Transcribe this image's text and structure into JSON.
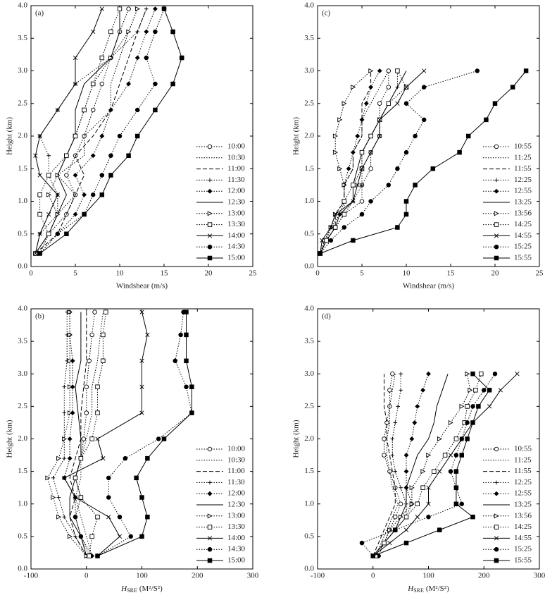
{
  "chart_data": [
    {
      "type": "line",
      "label": "(a)",
      "y_label": "Height (km)",
      "x_label": "Windshear (m/s)",
      "legend": "lower right",
      "xlim": [
        0,
        25
      ],
      "xticks": [
        0,
        5,
        10,
        15,
        20,
        25
      ],
      "ylim": [
        0,
        4
      ],
      "yticks": [
        {
          "value": 0,
          "label": "0.0"
        },
        0.5,
        {
          "value": 1,
          "label": "1.0"
        },
        1.5,
        {
          "value": 2,
          "label": "2.0"
        },
        2.5,
        {
          "value": 3,
          "label": "3.0"
        },
        3.5,
        {
          "value": 4,
          "label": "4.0"
        }
      ],
      "y": [
        0.2,
        0.5,
        0.8,
        1.1,
        1.4,
        1.7,
        2.0,
        2.4,
        2.8,
        3.2,
        3.6,
        3.95
      ],
      "series": [
        {
          "name": "10:00",
          "marker": "circle-open",
          "dash": "dotted",
          "x": [
            0.5,
            2,
            4,
            5,
            4,
            5,
            6,
            7,
            8,
            9,
            10,
            11
          ]
        },
        {
          "name": "10:30",
          "marker": "none",
          "dash": "dotted",
          "x": [
            0.5,
            2,
            3,
            5,
            3,
            6,
            6,
            9,
            9,
            10,
            11,
            12
          ]
        },
        {
          "name": "11:00",
          "marker": "none",
          "dash": "dashed",
          "x": [
            0.5,
            3,
            4,
            5,
            6,
            5,
            7,
            9,
            10,
            11,
            12,
            13
          ]
        },
        {
          "name": "11:30",
          "marker": "plus",
          "dash": "dotted",
          "x": [
            0.5,
            1,
            3,
            3,
            2,
            2,
            1,
            3,
            5,
            9,
            12,
            13
          ]
        },
        {
          "name": "12:00",
          "marker": "diamond",
          "dash": "dotted",
          "x": [
            1,
            3,
            5,
            6,
            5,
            7,
            8,
            9,
            11,
            12,
            13,
            14
          ]
        },
        {
          "name": "12:30",
          "marker": "none",
          "dash": "solid",
          "x": [
            0.5,
            2,
            3,
            4,
            3,
            4,
            5,
            5,
            6,
            9,
            10,
            10
          ]
        },
        {
          "name": "13:00",
          "marker": "triangle-open",
          "dash": "dotted",
          "x": [
            1,
            2,
            3,
            2,
            3,
            4,
            5,
            6,
            7,
            9,
            11,
            12
          ]
        },
        {
          "name": "13:30",
          "marker": "square-open",
          "dash": "dotted",
          "x": [
            0.5,
            2,
            1,
            1,
            2,
            4,
            5,
            6,
            7,
            8,
            9,
            10
          ]
        },
        {
          "name": "14:00",
          "marker": "cross",
          "dash": "solid",
          "x": [
            0.5,
            1,
            2,
            3,
            1,
            0.5,
            1,
            3,
            5,
            5,
            7,
            8
          ]
        },
        {
          "name": "14:30",
          "marker": "circle",
          "dash": "dotted",
          "x": [
            1,
            3,
            6,
            7,
            8,
            9,
            10,
            12,
            14,
            13,
            14,
            15
          ]
        },
        {
          "name": "15:00",
          "marker": "square",
          "dash": "solid",
          "x": [
            1,
            4,
            6,
            8,
            9,
            11,
            12,
            14,
            16,
            17,
            16,
            15
          ]
        }
      ]
    },
    {
      "type": "line",
      "label": "(b)",
      "y_label": "Height (km)",
      "x_label": {
        "main": "H",
        "sub": "SRE",
        "unit": "(M²/S²)"
      },
      "legend": "lower right",
      "xlim": [
        -100,
        300
      ],
      "xticks": [
        -100,
        0,
        100,
        200,
        300
      ],
      "ylim": [
        0,
        4
      ],
      "yticks": [
        {
          "value": 0,
          "label": "0.0"
        },
        0.5,
        {
          "value": 1,
          "label": "1.0"
        },
        1.5,
        {
          "value": 2,
          "label": "2.0"
        },
        2.5,
        {
          "value": 3,
          "label": "3.0"
        },
        3.5,
        {
          "value": 4,
          "label": "4.0"
        }
      ],
      "y": [
        0.2,
        0.5,
        0.8,
        1.1,
        1.4,
        1.7,
        2.0,
        2.4,
        2.8,
        3.2,
        3.6,
        3.95
      ],
      "series": [
        {
          "name": "10:00",
          "marker": "circle-open",
          "dash": "dotted",
          "x": [
            5,
            -10,
            -20,
            -10,
            -20,
            -10,
            -5,
            0,
            0,
            5,
            10,
            15
          ]
        },
        {
          "name": "10:30",
          "marker": "none",
          "dash": "dotted",
          "x": [
            10,
            0,
            -10,
            -20,
            -10,
            -10,
            0,
            10,
            10,
            20,
            25,
            30
          ]
        },
        {
          "name": "11:00",
          "marker": "none",
          "dash": "dashed",
          "x": [
            0,
            -20,
            -30,
            -20,
            -30,
            -20,
            -10,
            -10,
            -5,
            0,
            0,
            0
          ]
        },
        {
          "name": "11:30",
          "marker": "plus",
          "dash": "dotted",
          "x": [
            0,
            -20,
            -40,
            -50,
            -60,
            -40,
            -40,
            -40,
            -40,
            -35,
            -35,
            -35
          ]
        },
        {
          "name": "12:00",
          "marker": "diamond",
          "dash": "dotted",
          "x": [
            10,
            -10,
            -20,
            -20,
            -40,
            -30,
            -30,
            -25,
            -25,
            -25,
            -30,
            -30
          ]
        },
        {
          "name": "12:30",
          "marker": "none",
          "dash": "solid",
          "x": [
            0,
            -10,
            -30,
            -30,
            -20,
            -10,
            -10,
            -15,
            -20,
            -10,
            -10,
            -10
          ]
        },
        {
          "name": "13:00",
          "marker": "triangle-open",
          "dash": "dotted",
          "x": [
            0,
            -30,
            -50,
            -60,
            -70,
            -50,
            -40,
            -30,
            -30,
            -30,
            -30,
            -30
          ]
        },
        {
          "name": "13:30",
          "marker": "square-open",
          "dash": "dotted",
          "x": [
            5,
            10,
            20,
            -10,
            -20,
            -10,
            10,
            20,
            20,
            30,
            30,
            35
          ]
        },
        {
          "name": "14:00",
          "marker": "cross",
          "dash": "solid",
          "x": [
            20,
            60,
            40,
            -20,
            -40,
            30,
            20,
            100,
            100,
            100,
            110,
            100
          ]
        },
        {
          "name": "14:30",
          "marker": "circle",
          "dash": "dotted",
          "x": [
            20,
            80,
            60,
            40,
            40,
            70,
            130,
            190,
            180,
            160,
            170,
            175
          ]
        },
        {
          "name": "15:00",
          "marker": "square",
          "dash": "solid",
          "x": [
            20,
            100,
            110,
            100,
            90,
            110,
            140,
            190,
            190,
            180,
            180,
            180
          ]
        }
      ]
    },
    {
      "type": "line",
      "label": "(c)",
      "y_label": "Height (km)",
      "x_label": "Windshear (m/s)",
      "legend": "lower right",
      "xlim": [
        0,
        25
      ],
      "xticks": [
        0,
        5,
        10,
        15,
        20,
        25
      ],
      "ylim": [
        0,
        4
      ],
      "yticks": [
        {
          "value": 0,
          "label": "0.0"
        },
        0.5,
        {
          "value": 1,
          "label": "1.0"
        },
        1.5,
        {
          "value": 2,
          "label": "2.0"
        },
        2.5,
        {
          "value": 3,
          "label": "3.0"
        },
        3.5,
        {
          "value": 4,
          "label": "4.0"
        }
      ],
      "y": [
        0.2,
        0.4,
        0.6,
        0.8,
        1.0,
        1.25,
        1.5,
        1.75,
        2.0,
        2.25,
        2.5,
        2.75,
        3.0
      ],
      "series": [
        {
          "name": "10:55",
          "marker": "circle-open",
          "dash": "dotted",
          "x": [
            0.3,
            1,
            2,
            3,
            5,
            5,
            6,
            6,
            7,
            7,
            7,
            8,
            8
          ]
        },
        {
          "name": "11:25",
          "marker": "none",
          "dash": "dotted",
          "x": [
            0.3,
            1,
            1.5,
            2,
            3,
            3,
            4,
            4,
            5,
            5,
            6,
            7,
            8
          ]
        },
        {
          "name": "11:55",
          "marker": "none",
          "dash": "dashed",
          "x": [
            0.3,
            1,
            2,
            2,
            3,
            3,
            4,
            4,
            5,
            5,
            5,
            6,
            6
          ]
        },
        {
          "name": "12:25",
          "marker": "plus",
          "dash": "dotted",
          "x": [
            0.3,
            1,
            2,
            3,
            4,
            5,
            5,
            5,
            6,
            7,
            8,
            9,
            9
          ]
        },
        {
          "name": "12:55",
          "marker": "diamond",
          "dash": "dotted",
          "x": [
            0.3,
            0.8,
            1.5,
            2.5,
            3,
            3,
            3.5,
            4,
            4.5,
            5,
            5.5,
            6,
            7
          ]
        },
        {
          "name": "13:25",
          "marker": "none",
          "dash": "solid",
          "x": [
            0.3,
            1,
            2,
            2.5,
            4,
            4,
            4.5,
            5,
            6,
            7,
            8,
            9,
            10
          ]
        },
        {
          "name": "13:56",
          "marker": "triangle-open",
          "dash": "dotted",
          "x": [
            0.3,
            0.8,
            1.5,
            2,
            3,
            3,
            2.5,
            2,
            2,
            2.5,
            3,
            4,
            6
          ]
        },
        {
          "name": "14:25",
          "marker": "square-open",
          "dash": "dotted",
          "x": [
            0.3,
            1,
            2,
            3,
            3,
            4,
            5,
            5,
            6,
            7,
            8,
            10,
            9
          ]
        },
        {
          "name": "14:55",
          "marker": "cross",
          "dash": "solid",
          "x": [
            0.3,
            0.5,
            1.5,
            2,
            4,
            4.5,
            5,
            6,
            7,
            7,
            9,
            10,
            12
          ]
        },
        {
          "name": "15:25",
          "marker": "circle",
          "dash": "dotted",
          "x": [
            0.3,
            1.5,
            3,
            5,
            6,
            8,
            9,
            10,
            11,
            12,
            10,
            12,
            18
          ]
        },
        {
          "name": "15:55",
          "marker": "square",
          "dash": "solid",
          "x": [
            0.3,
            4,
            9,
            10,
            10,
            11,
            13,
            16,
            17,
            19,
            20,
            22,
            23.5
          ]
        }
      ]
    },
    {
      "type": "line",
      "label": "(d)",
      "y_label": "Height (km)",
      "x_label": {
        "main": "H",
        "sub": "SRE",
        "unit": "(M²/S²)"
      },
      "legend": "lower right",
      "xlim": [
        -100,
        300
      ],
      "xticks": [
        -100,
        0,
        100,
        200,
        300
      ],
      "ylim": [
        0,
        4
      ],
      "yticks": [
        {
          "value": 0,
          "label": "0.0"
        },
        0.5,
        {
          "value": 1,
          "label": "1.0"
        },
        1.5,
        {
          "value": 2,
          "label": "2.0"
        },
        2.5,
        {
          "value": 3,
          "label": "3.0"
        },
        3.5,
        {
          "value": 4,
          "label": "4.0"
        }
      ],
      "y": [
        0.2,
        0.4,
        0.6,
        0.8,
        1.0,
        1.25,
        1.5,
        1.75,
        2.0,
        2.25,
        2.5,
        2.75,
        3.0
      ],
      "series": [
        {
          "name": "10:55",
          "marker": "circle-open",
          "dash": "dotted",
          "x": [
            10,
            20,
            30,
            40,
            50,
            40,
            30,
            20,
            20,
            25,
            30,
            30,
            35
          ]
        },
        {
          "name": "11:25",
          "marker": "none",
          "dash": "dotted",
          "x": [
            5,
            15,
            25,
            35,
            45,
            35,
            30,
            25,
            25,
            30,
            30,
            35,
            40
          ]
        },
        {
          "name": "11:55",
          "marker": "none",
          "dash": "dashed",
          "x": [
            0,
            10,
            20,
            30,
            40,
            40,
            35,
            30,
            25,
            25,
            20,
            20,
            20
          ]
        },
        {
          "name": "12:25",
          "marker": "plus",
          "dash": "dotted",
          "x": [
            5,
            20,
            40,
            60,
            60,
            50,
            40,
            35,
            35,
            40,
            45,
            50,
            50
          ]
        },
        {
          "name": "12:55",
          "marker": "diamond",
          "dash": "dotted",
          "x": [
            10,
            20,
            40,
            60,
            70,
            60,
            60,
            60,
            70,
            75,
            80,
            90,
            100
          ]
        },
        {
          "name": "13:25",
          "marker": "none",
          "dash": "solid",
          "x": [
            0,
            20,
            40,
            50,
            60,
            60,
            70,
            80,
            100,
            110,
            115,
            125,
            135
          ]
        },
        {
          "name": "13:56",
          "marker": "triangle-open",
          "dash": "dotted",
          "x": [
            0,
            20,
            30,
            50,
            70,
            70,
            90,
            100,
            120,
            140,
            160,
            175,
            170
          ]
        },
        {
          "name": "14:25",
          "marker": "square-open",
          "dash": "dotted",
          "x": [
            5,
            20,
            40,
            60,
            80,
            90,
            110,
            130,
            150,
            165,
            170,
            185,
            195
          ]
        },
        {
          "name": "14:55",
          "marker": "cross",
          "dash": "solid",
          "x": [
            0,
            30,
            60,
            80,
            100,
            100,
            120,
            140,
            160,
            180,
            210,
            230,
            260
          ]
        },
        {
          "name": "15:25",
          "marker": "circle",
          "dash": "dotted",
          "x": [
            0,
            -20,
            40,
            100,
            160,
            150,
            140,
            150,
            160,
            170,
            180,
            200,
            220
          ]
        },
        {
          "name": "15:55",
          "marker": "square",
          "dash": "solid",
          "x": [
            0,
            60,
            120,
            180,
            150,
            150,
            150,
            160,
            170,
            180,
            190,
            210,
            180
          ]
        }
      ]
    }
  ]
}
